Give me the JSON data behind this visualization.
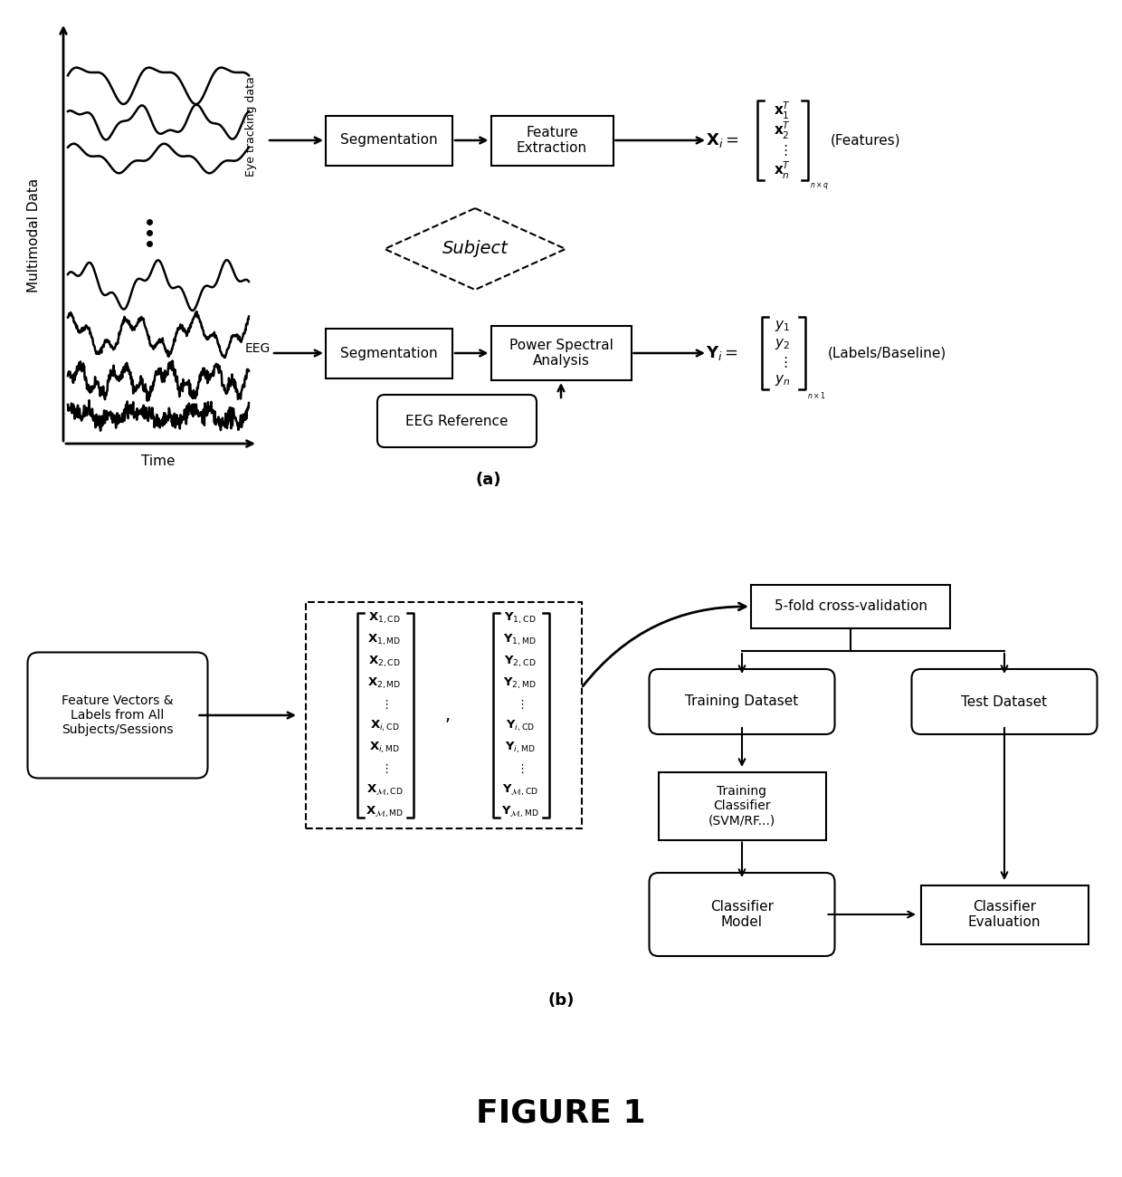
{
  "bg_color": "#ffffff",
  "title": "FIGURE 1",
  "label_a": "(a)",
  "label_b": "(b)"
}
